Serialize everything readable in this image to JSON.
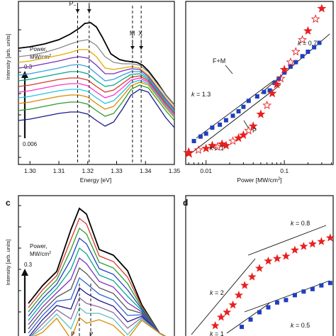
{
  "chart_data": [
    {
      "panel": "a",
      "type": "line",
      "xlabel": "Energy [eV]",
      "ylabel": "Intensity [arb. units]",
      "xlim": [
        1.296,
        1.35
      ],
      "xticks": [
        1.3,
        1.31,
        1.32,
        1.33,
        1.34,
        1.35
      ],
      "xtick_labels": [
        "1.30",
        "1.31",
        "1.32",
        "1.33",
        "1.34",
        "1.35"
      ],
      "ylim": [
        0,
        1
      ],
      "y_scale": "log",
      "legend_title": "Power,",
      "legend_unit": "MW/cm",
      "legend_unit_sup": "2",
      "power_high": "0.3",
      "power_low": "0.006",
      "markers": [
        {
          "text": "P",
          "sub": "−",
          "x": 1.3165
        },
        {
          "text": "",
          "x": 1.3205
        },
        {
          "text": "M",
          "x": 1.3355
        },
        {
          "text": "X",
          "x": 1.3385
        }
      ],
      "series": [
        {
          "color": "#000000",
          "x": [
            1.296,
            1.3,
            1.305,
            1.31,
            1.314,
            1.317,
            1.319,
            1.321,
            1.323,
            1.325,
            1.328,
            1.331,
            1.333,
            1.335,
            1.337,
            1.339,
            1.341,
            1.344,
            1.347,
            1.35
          ],
          "y": [
            0.78,
            0.79,
            0.81,
            0.84,
            0.88,
            0.92,
            0.955,
            0.96,
            0.93,
            0.86,
            0.74,
            0.7,
            0.69,
            0.685,
            0.68,
            0.66,
            0.62,
            0.54,
            0.45,
            0.38
          ]
        },
        {
          "color": "#8a8a8a",
          "x": [
            1.296,
            1.3,
            1.305,
            1.31,
            1.314,
            1.317,
            1.32,
            1.323,
            1.326,
            1.329,
            1.332,
            1.335,
            1.338,
            1.341,
            1.344,
            1.347,
            1.35
          ],
          "y": [
            0.72,
            0.73,
            0.75,
            0.78,
            0.81,
            0.83,
            0.84,
            0.8,
            0.72,
            0.68,
            0.67,
            0.67,
            0.66,
            0.61,
            0.53,
            0.45,
            0.38
          ]
        },
        {
          "color": "#e6a800",
          "x": [
            1.296,
            1.3,
            1.305,
            1.31,
            1.314,
            1.317,
            1.32,
            1.323,
            1.326,
            1.329,
            1.332,
            1.335,
            1.338,
            1.341,
            1.344,
            1.347,
            1.35
          ],
          "y": [
            0.68,
            0.69,
            0.71,
            0.73,
            0.75,
            0.77,
            0.77,
            0.72,
            0.64,
            0.63,
            0.64,
            0.65,
            0.64,
            0.59,
            0.51,
            0.43,
            0.36
          ]
        },
        {
          "color": "#7b2fbe",
          "x": [
            1.296,
            1.3,
            1.305,
            1.31,
            1.314,
            1.317,
            1.32,
            1.323,
            1.326,
            1.329,
            1.332,
            1.335,
            1.338,
            1.341,
            1.344,
            1.347,
            1.35
          ],
          "y": [
            0.64,
            0.65,
            0.67,
            0.69,
            0.71,
            0.72,
            0.71,
            0.66,
            0.6,
            0.6,
            0.62,
            0.635,
            0.63,
            0.58,
            0.5,
            0.42,
            0.35
          ]
        },
        {
          "color": "#3aa0e0",
          "x": [
            1.296,
            1.3,
            1.305,
            1.31,
            1.314,
            1.317,
            1.32,
            1.323,
            1.326,
            1.329,
            1.332,
            1.335,
            1.338,
            1.341,
            1.344,
            1.347,
            1.35
          ],
          "y": [
            0.59,
            0.6,
            0.62,
            0.64,
            0.66,
            0.665,
            0.65,
            0.6,
            0.55,
            0.56,
            0.59,
            0.615,
            0.615,
            0.57,
            0.49,
            0.41,
            0.34
          ]
        },
        {
          "color": "#00a88a",
          "x": [
            1.296,
            1.3,
            1.305,
            1.31,
            1.314,
            1.317,
            1.32,
            1.323,
            1.326,
            1.329,
            1.332,
            1.335,
            1.338,
            1.341,
            1.344,
            1.347,
            1.35
          ],
          "y": [
            0.55,
            0.56,
            0.58,
            0.6,
            0.615,
            0.615,
            0.6,
            0.55,
            0.51,
            0.52,
            0.56,
            0.595,
            0.6,
            0.56,
            0.48,
            0.4,
            0.33
          ]
        },
        {
          "color": "#d63a2a",
          "x": [
            1.296,
            1.3,
            1.305,
            1.31,
            1.314,
            1.317,
            1.32,
            1.323,
            1.326,
            1.329,
            1.332,
            1.335,
            1.338,
            1.341,
            1.344,
            1.347,
            1.35
          ],
          "y": [
            0.51,
            0.52,
            0.54,
            0.56,
            0.57,
            0.57,
            0.555,
            0.51,
            0.47,
            0.485,
            0.53,
            0.575,
            0.585,
            0.55,
            0.47,
            0.39,
            0.32
          ]
        },
        {
          "color": "#ff33cc",
          "x": [
            1.296,
            1.3,
            1.305,
            1.31,
            1.314,
            1.317,
            1.32,
            1.323,
            1.326,
            1.329,
            1.332,
            1.335,
            1.338,
            1.341,
            1.344,
            1.347,
            1.35
          ],
          "y": [
            0.47,
            0.48,
            0.5,
            0.52,
            0.53,
            0.53,
            0.515,
            0.47,
            0.43,
            0.45,
            0.5,
            0.555,
            0.57,
            0.54,
            0.46,
            0.38,
            0.31
          ]
        },
        {
          "color": "#20c8e8",
          "x": [
            1.296,
            1.3,
            1.305,
            1.31,
            1.314,
            1.317,
            1.32,
            1.323,
            1.326,
            1.329,
            1.332,
            1.335,
            1.338,
            1.341,
            1.344,
            1.347,
            1.35
          ],
          "y": [
            0.43,
            0.44,
            0.46,
            0.48,
            0.49,
            0.49,
            0.475,
            0.43,
            0.39,
            0.41,
            0.47,
            0.535,
            0.555,
            0.53,
            0.45,
            0.37,
            0.3
          ]
        },
        {
          "color": "#d98a00",
          "x": [
            1.296,
            1.3,
            1.305,
            1.31,
            1.314,
            1.317,
            1.32,
            1.323,
            1.326,
            1.329,
            1.332,
            1.335,
            1.338,
            1.341,
            1.344,
            1.347,
            1.35
          ],
          "y": [
            0.39,
            0.4,
            0.42,
            0.44,
            0.45,
            0.45,
            0.435,
            0.39,
            0.35,
            0.37,
            0.44,
            0.515,
            0.54,
            0.52,
            0.44,
            0.36,
            0.29
          ]
        },
        {
          "color": "#2d9b2d",
          "x": [
            1.296,
            1.3,
            1.305,
            1.31,
            1.314,
            1.317,
            1.32,
            1.323,
            1.326,
            1.329,
            1.332,
            1.335,
            1.338,
            1.341,
            1.344,
            1.347,
            1.35
          ],
          "y": [
            0.34,
            0.35,
            0.37,
            0.39,
            0.4,
            0.4,
            0.385,
            0.34,
            0.3,
            0.32,
            0.4,
            0.49,
            0.52,
            0.5,
            0.42,
            0.34,
            0.27
          ]
        },
        {
          "color": "#1a1a8c",
          "x": [
            1.296,
            1.3,
            1.305,
            1.31,
            1.314,
            1.317,
            1.32,
            1.323,
            1.326,
            1.329,
            1.332,
            1.335,
            1.338,
            1.341,
            1.344,
            1.347,
            1.35
          ],
          "y": [
            0.27,
            0.28,
            0.3,
            0.32,
            0.33,
            0.33,
            0.315,
            0.27,
            0.23,
            0.26,
            0.35,
            0.45,
            0.49,
            0.47,
            0.38,
            0.29,
            0.22
          ]
        }
      ]
    },
    {
      "panel": "b",
      "type": "scatter",
      "xlabel": "Power [MW/cm",
      "xlabel_sup": "2",
      "xlabel_end": "]",
      "x_scale": "log",
      "xlim": [
        0.0055,
        0.42
      ],
      "xticks": [
        0.01,
        0.1
      ],
      "xtick_labels": [
        "0.01",
        "0.1"
      ],
      "y_scale": "log",
      "ylim": [
        0,
        1
      ],
      "series": [
        {
          "name": "F+M",
          "marker": "square",
          "color": "#1f3fbf",
          "x": [
            0.007,
            0.0085,
            0.01,
            0.012,
            0.015,
            0.018,
            0.022,
            0.026,
            0.03,
            0.035,
            0.045,
            0.055,
            0.065,
            0.075,
            0.085,
            0.1,
            0.12,
            0.14,
            0.17,
            0.2,
            0.24,
            0.28
          ],
          "y": [
            0.1,
            0.13,
            0.15,
            0.19,
            0.21,
            0.24,
            0.27,
            0.3,
            0.33,
            0.37,
            0.4,
            0.43,
            0.44,
            0.49,
            0.52,
            0.56,
            0.6,
            0.63,
            0.67,
            0.7,
            0.73,
            0.76
          ]
        },
        {
          "name": "P",
          "marker": "star",
          "color": "#e82020",
          "x": [
            0.006,
            0.008,
            0.01,
            0.012,
            0.014,
            0.016,
            0.018,
            0.022,
            0.026,
            0.03,
            0.035,
            0.04,
            0.05,
            0.06,
            0.07,
            0.08,
            0.09,
            0.1,
            0.12,
            0.14,
            0.17,
            0.2,
            0.25,
            0.3
          ],
          "y": [
            0.02,
            0.04,
            0.05,
            0.07,
            0.06,
            0.08,
            0.07,
            0.1,
            0.12,
            0.14,
            0.17,
            0.2,
            0.28,
            0.34,
            0.42,
            0.48,
            0.52,
            0.58,
            0.63,
            0.7,
            0.78,
            0.84,
            0.92,
            0.99
          ]
        }
      ],
      "fit_lines": [
        {
          "label": "k = 1.3",
          "x": [
            0.0075,
            0.075
          ],
          "y": [
            0.12,
            0.51
          ]
        },
        {
          "label": "k = 0.7",
          "x": [
            0.05,
            0.38
          ],
          "y": [
            0.42,
            0.82
          ]
        },
        {
          "label": "k = 1",
          "x": [
            0.0058,
            0.09
          ],
          "y": [
            0.0,
            0.48
          ]
        }
      ],
      "annotations": [
        {
          "text": "F+M",
          "color": "#1f3fbf"
        },
        {
          "text": "P",
          "color": "#e82020"
        },
        {
          "text": "k",
          "value": " = 1.3"
        },
        {
          "text": "k",
          "value": " = 0.7"
        },
        {
          "text": "k",
          "value": " = 1"
        }
      ]
    },
    {
      "panel": "c",
      "label": "c",
      "type": "line",
      "ylabel": "Intensity [arb. units]",
      "y_scale": "log",
      "legend_title": "Power,",
      "legend_unit": "MW/cm",
      "legend_unit_sup": "2",
      "power_high": "0.3",
      "markers": [
        {
          "text": "P"
        },
        {
          "text": "P"
        }
      ],
      "series_colors": [
        "#000000",
        "#d63a2a",
        "#2d9b2d",
        "#1f3fbf",
        "#00a88a",
        "#7b2fbe",
        "#555555",
        "#3060d0",
        "#1a1a8c",
        "#8a6aa0",
        "#5cc0c0",
        "#d98a00"
      ]
    },
    {
      "panel": "d",
      "label": "d",
      "type": "scatter",
      "x_scale": "log",
      "y_scale": "log",
      "series": [
        {
          "name": "red",
          "marker": "star",
          "color": "#e82020",
          "x": [
            0.2,
            0.24,
            0.28,
            0.32,
            0.36,
            0.4,
            0.45,
            0.5,
            0.56,
            0.62,
            0.68,
            0.74,
            0.8,
            0.86,
            0.92,
            0.98
          ],
          "y": [
            0.05,
            0.12,
            0.16,
            0.22,
            0.3,
            0.38,
            0.45,
            0.52,
            0.58,
            0.6,
            0.62,
            0.67,
            0.7,
            0.72,
            0.74,
            0.77
          ]
        },
        {
          "name": "blue",
          "marker": "square",
          "color": "#1f3fbf",
          "x": [
            0.38,
            0.44,
            0.5,
            0.56,
            0.62,
            0.68,
            0.74,
            0.8,
            0.86,
            0.92,
            0.98
          ],
          "y": [
            0.04,
            0.1,
            0.16,
            0.2,
            0.24,
            0.26,
            0.3,
            0.33,
            0.35,
            0.38,
            0.4
          ]
        }
      ],
      "annotations": [
        {
          "text": "k",
          "value": " = 0.8"
        },
        {
          "text": "k",
          "value": " = 2"
        },
        {
          "text": "k",
          "value": " = 0.5"
        },
        {
          "text": "k",
          "value": " = 1"
        }
      ]
    }
  ]
}
